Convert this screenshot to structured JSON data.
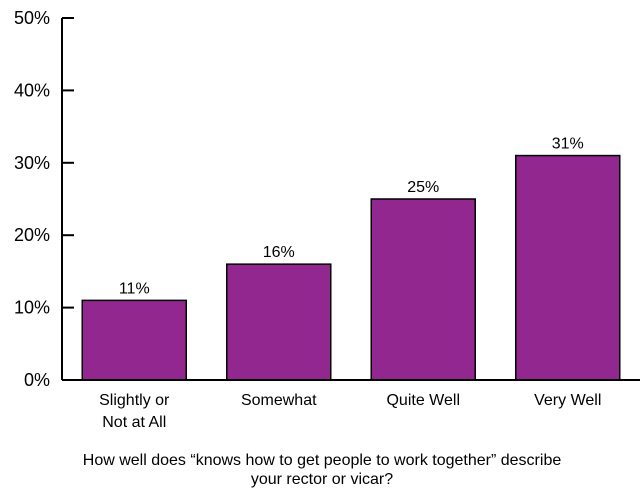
{
  "chart_data": {
    "type": "bar",
    "categories": [
      [
        "Slightly or",
        "Not at All"
      ],
      [
        "Somewhat"
      ],
      [
        "Quite Well"
      ],
      [
        "Very Well"
      ]
    ],
    "values": [
      11,
      16,
      25,
      31
    ],
    "data_labels": [
      "11%",
      "16%",
      "25%",
      "31%"
    ],
    "yticks": [
      "0%",
      "10%",
      "20%",
      "30%",
      "40%",
      "50%"
    ],
    "ylim": [
      0,
      50
    ],
    "xlabel_lines": [
      "How well does “knows how to get people to work together” describe",
      "your rector or vicar?"
    ],
    "bar_color": "#92278f",
    "grid": false
  }
}
